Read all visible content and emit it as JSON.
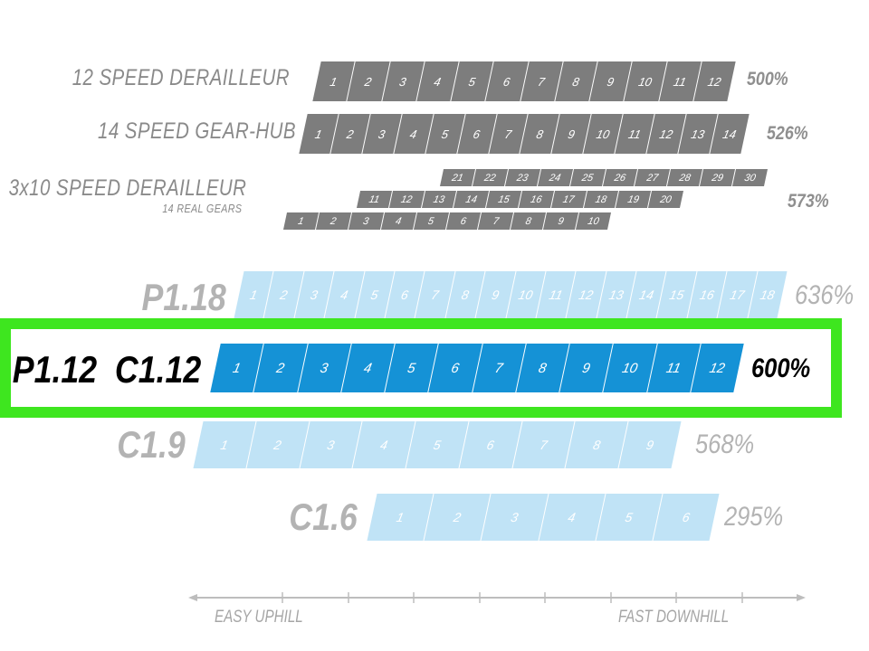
{
  "rows": [
    {
      "label": "12 SPEED DERAILLEUR",
      "gears": [
        "1",
        "2",
        "3",
        "4",
        "5",
        "6",
        "7",
        "8",
        "9",
        "10",
        "11",
        "12"
      ],
      "percent": "500%"
    },
    {
      "label": "14 SPEED GEAR-HUB",
      "gears": [
        "1",
        "2",
        "3",
        "4",
        "5",
        "6",
        "7",
        "8",
        "9",
        "10",
        "11",
        "12",
        "13",
        "14"
      ],
      "percent": "526%"
    },
    {
      "label": "3x10 SPEED DERAILLEUR",
      "sublabel": "14 REAL GEARS",
      "gears_top": [
        "21",
        "22",
        "23",
        "24",
        "25",
        "26",
        "27",
        "28",
        "29",
        "30"
      ],
      "gears_mid": [
        "11",
        "12",
        "13",
        "14",
        "15",
        "16",
        "17",
        "18",
        "19",
        "20"
      ],
      "gears_bottom": [
        "1",
        "2",
        "3",
        "4",
        "5",
        "6",
        "7",
        "8",
        "9",
        "10"
      ],
      "percent": "573%"
    },
    {
      "label": "P1.18",
      "gears": [
        "1",
        "2",
        "3",
        "4",
        "5",
        "6",
        "7",
        "8",
        "9",
        "10",
        "11",
        "12",
        "13",
        "14",
        "15",
        "16",
        "17",
        "18"
      ],
      "percent": "636%"
    },
    {
      "label": "P1.12  C1.12",
      "gears": [
        "1",
        "2",
        "3",
        "4",
        "5",
        "6",
        "7",
        "8",
        "9",
        "10",
        "11",
        "12"
      ],
      "percent": "600%",
      "highlighted": true
    },
    {
      "label": "C1.9",
      "gears": [
        "1",
        "2",
        "3",
        "4",
        "5",
        "6",
        "7",
        "8",
        "9"
      ],
      "percent": "568%"
    },
    {
      "label": "C1.6",
      "gears": [
        "1",
        "2",
        "3",
        "4",
        "5",
        "6"
      ],
      "percent": "295%"
    }
  ],
  "axis": {
    "left_label": "EASY UPHILL",
    "right_label": "FAST DOWNHILL"
  },
  "colors": {
    "gray_bar": "#7d7d7d",
    "light_blue_bar": "#c0e3f6",
    "blue_bar": "#1592d6",
    "highlight": "#3ee61f"
  }
}
